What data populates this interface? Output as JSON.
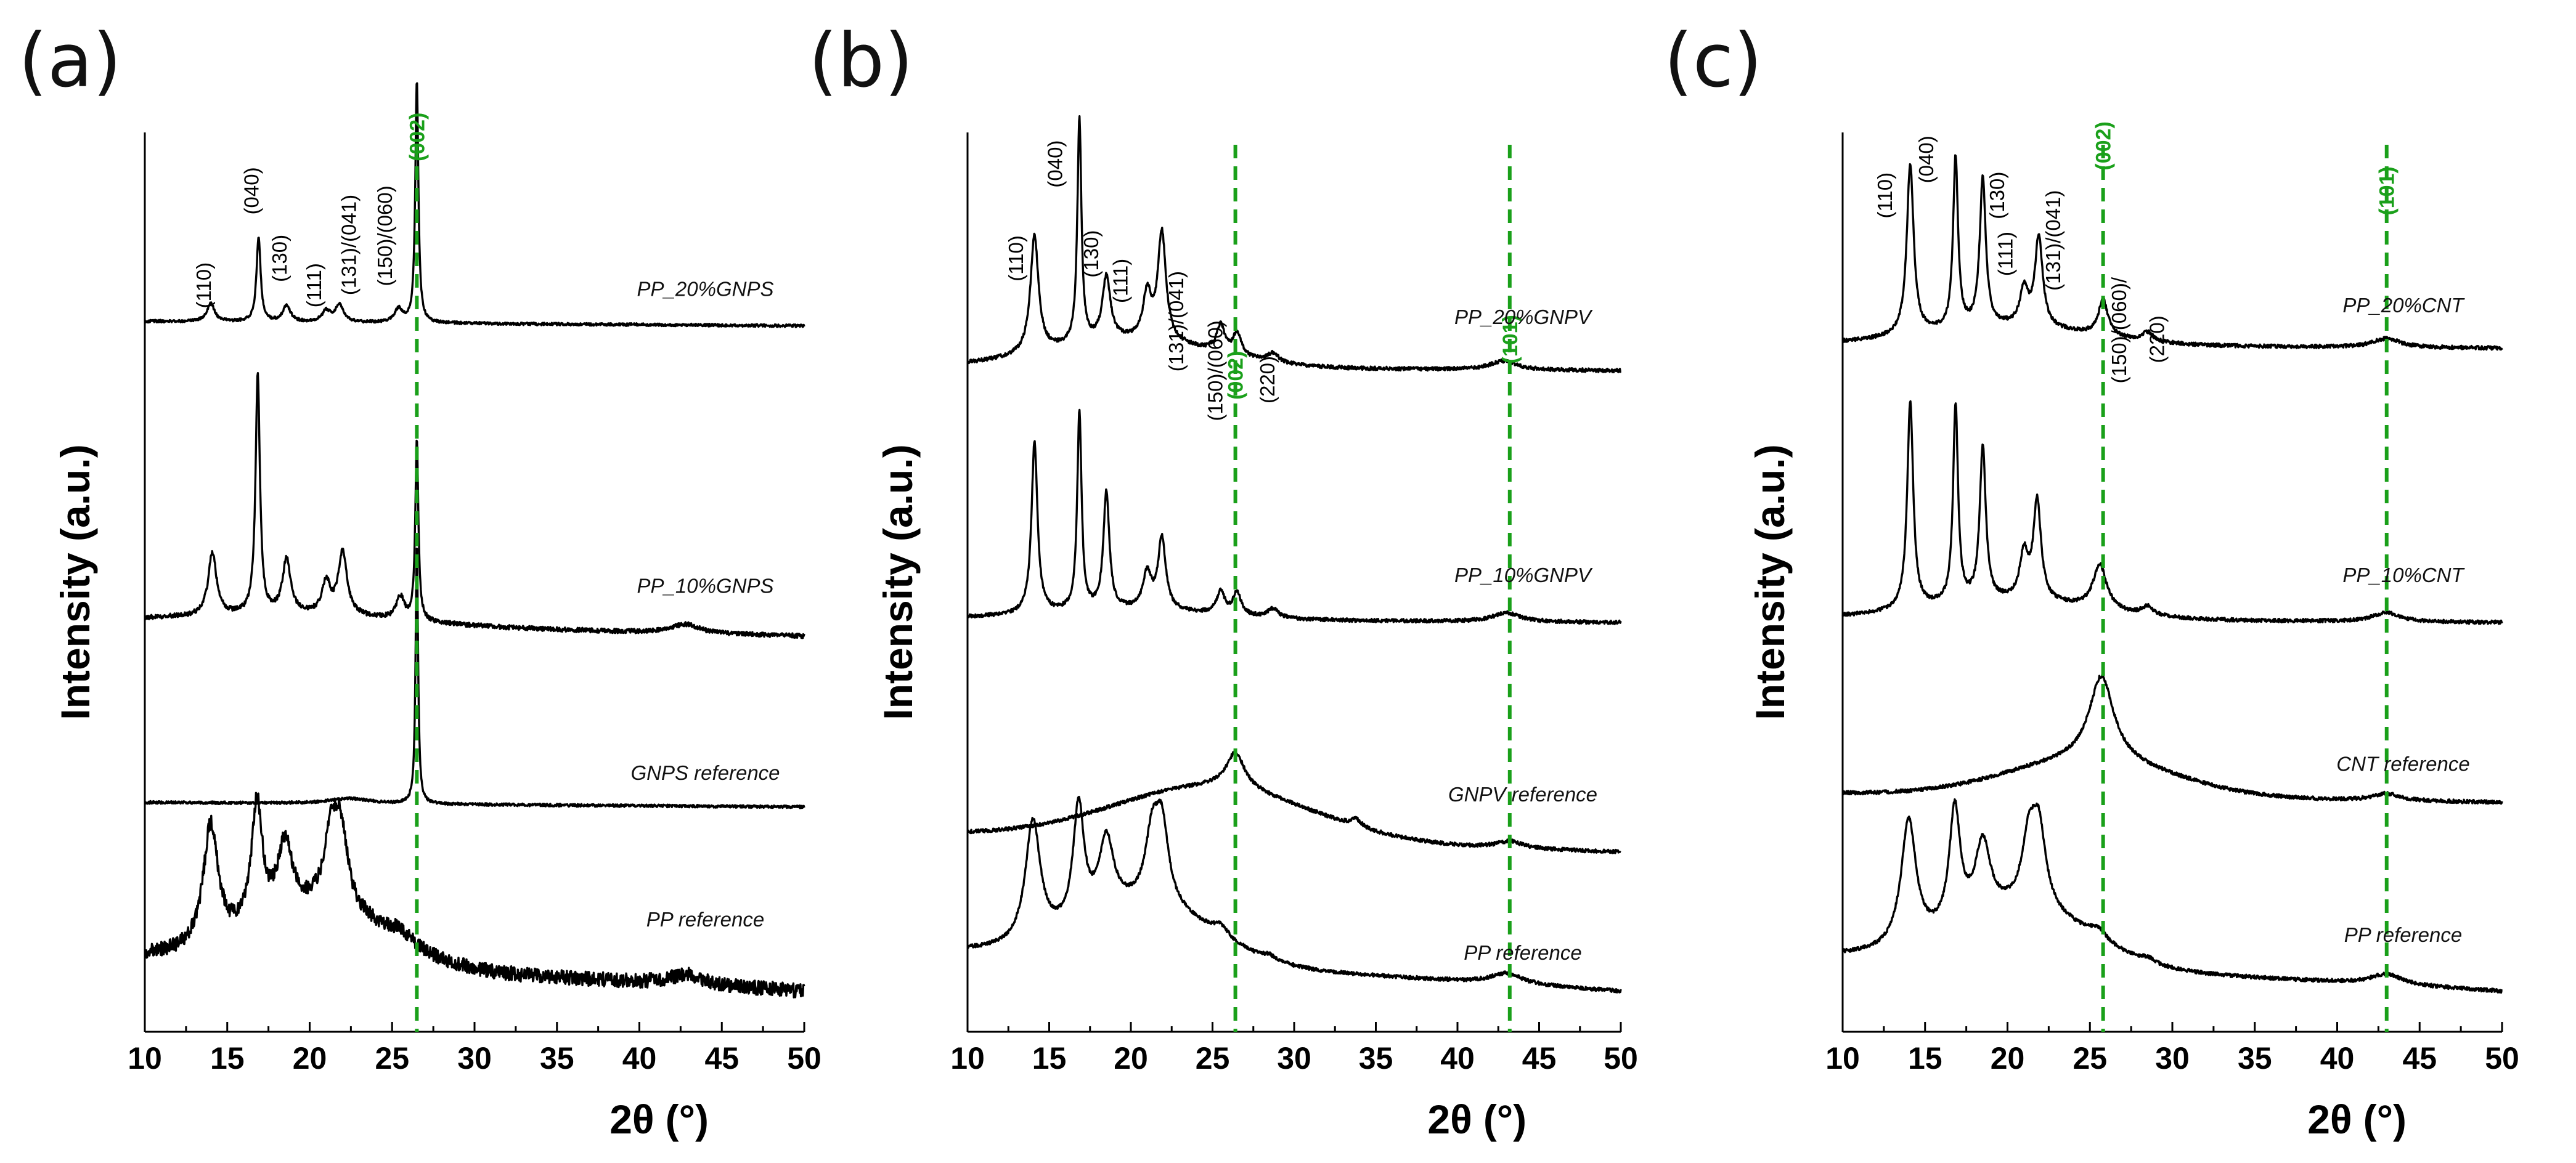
{
  "figure": {
    "x_axis_label_symbol": "2θ",
    "x_axis_label_unit": "(°)",
    "y_axis_label": "Intensity (a.u.)"
  },
  "chart_data": [
    {
      "type": "line",
      "panel": "(a)",
      "xlabel": "2θ (°)",
      "ylabel": "Intensity (a.u.)",
      "xlim": [
        10,
        50
      ],
      "xticks": [
        10,
        15,
        20,
        25,
        30,
        35,
        40,
        45,
        50
      ],
      "xtick_labels": [
        "10",
        "15",
        "20",
        "25",
        "30",
        "35",
        "40",
        "45",
        "50"
      ],
      "series": [
        {
          "name": "PP_20%GNPS",
          "baseline": 0.79,
          "tail": 0.785,
          "peaks": [
            [
              14.0,
              0.02,
              0.28
            ],
            [
              16.9,
              0.095,
              0.15
            ],
            [
              18.6,
              0.018,
              0.28
            ],
            [
              21.0,
              0.012,
              0.3
            ],
            [
              21.8,
              0.02,
              0.3
            ],
            [
              25.4,
              0.015,
              0.3
            ],
            [
              26.5,
              0.27,
              0.11
            ]
          ],
          "hump": [
            [
              23.0,
              0.0,
              5.0
            ]
          ],
          "noise": 0.0015
        },
        {
          "name": "PP_10%GNPS",
          "baseline": 0.458,
          "tail": 0.44,
          "peaks": [
            [
              14.1,
              0.07,
              0.3
            ],
            [
              16.85,
              0.265,
              0.16
            ],
            [
              18.6,
              0.06,
              0.3
            ],
            [
              21.0,
              0.035,
              0.3
            ],
            [
              22.0,
              0.07,
              0.32
            ],
            [
              25.5,
              0.025,
              0.3
            ],
            [
              26.5,
              0.2,
              0.11
            ],
            [
              42.8,
              0.01,
              1.0
            ]
          ],
          "hump": [
            [
              20.0,
              0.01,
              6.0
            ]
          ],
          "noise": 0.0025
        },
        {
          "name": "GNPS reference",
          "baseline": 0.255,
          "tail": 0.25,
          "peaks": [
            [
              22.4,
              0.006,
              1.5
            ],
            [
              26.5,
              0.29,
              0.09
            ]
          ],
          "hump": [],
          "noise": 0.0015
        },
        {
          "name": "PP reference",
          "baseline": 0.085,
          "tail": 0.045,
          "peaks": [
            [
              14.0,
              0.135,
              0.55
            ],
            [
              16.8,
              0.135,
              0.4
            ],
            [
              18.5,
              0.08,
              0.55
            ],
            [
              21.3,
              0.075,
              0.5
            ],
            [
              21.9,
              0.08,
              0.5
            ],
            [
              25.5,
              0.012,
              0.6
            ],
            [
              42.9,
              0.012,
              1.2
            ]
          ],
          "hump": [
            [
              21.0,
              0.06,
              4.0
            ]
          ],
          "noise": 0.008
        }
      ],
      "peak_labels": [
        {
          "text": "(110)",
          "x": 14.0,
          "y": 0.83
        },
        {
          "text": "(040)",
          "x": 16.9,
          "y": 0.935
        },
        {
          "text": "(130)",
          "x": 18.6,
          "y": 0.86
        },
        {
          "text": "(111)",
          "x": 20.7,
          "y": 0.83
        },
        {
          "text": "(131)/(041)",
          "x": 22.8,
          "y": 0.875
        },
        {
          "text": "(150)/(060)",
          "x": 25.0,
          "y": 0.885
        }
      ],
      "reference_lines": [
        {
          "x": 26.5,
          "label": "(002)",
          "label_y": 0.995
        }
      ],
      "trace_labels": [
        {
          "series": "PP_20%GNPS",
          "x": 44.0,
          "y": 0.818
        },
        {
          "series": "PP_10%GNPS",
          "x": 44.0,
          "y": 0.488
        },
        {
          "series": "GNPS reference",
          "x": 44.0,
          "y": 0.28
        },
        {
          "series": "PP reference",
          "x": 44.0,
          "y": 0.117
        }
      ]
    },
    {
      "type": "line",
      "panel": "(b)",
      "xlabel": "2θ (°)",
      "ylabel": "Intensity (a.u.)",
      "xlim": [
        10,
        50
      ],
      "xticks": [
        10,
        15,
        20,
        25,
        30,
        35,
        40,
        45,
        50
      ],
      "xtick_labels": [
        "10",
        "15",
        "20",
        "25",
        "30",
        "35",
        "40",
        "45",
        "50"
      ],
      "series": [
        {
          "name": "PP_20%GNPV",
          "baseline": 0.74,
          "tail": 0.735,
          "peaks": [
            [
              14.1,
              0.13,
              0.3
            ],
            [
              16.85,
              0.25,
              0.15
            ],
            [
              18.5,
              0.07,
              0.3
            ],
            [
              21.0,
              0.05,
              0.3
            ],
            [
              21.9,
              0.12,
              0.3
            ],
            [
              25.5,
              0.03,
              0.3
            ],
            [
              26.5,
              0.025,
              0.3
            ],
            [
              28.7,
              0.01,
              0.4
            ],
            [
              42.8,
              0.01,
              1.0
            ]
          ],
          "hump": [
            [
              20.0,
              0.03,
              5.0
            ]
          ],
          "noise": 0.002
        },
        {
          "name": "PP_10%GNPV",
          "baseline": 0.46,
          "tail": 0.455,
          "peaks": [
            [
              14.1,
              0.19,
              0.22
            ],
            [
              16.85,
              0.22,
              0.16
            ],
            [
              18.5,
              0.13,
              0.22
            ],
            [
              21.0,
              0.04,
              0.3
            ],
            [
              21.9,
              0.08,
              0.28
            ],
            [
              25.5,
              0.025,
              0.3
            ],
            [
              26.5,
              0.025,
              0.3
            ],
            [
              28.7,
              0.01,
              0.4
            ],
            [
              43.0,
              0.01,
              1.0
            ]
          ],
          "hump": [
            [
              20.0,
              0.01,
              5.0
            ]
          ],
          "noise": 0.002
        },
        {
          "name": "GNPV reference",
          "baseline": 0.22,
          "tail": 0.2,
          "peaks": [
            [
              26.4,
              0.04,
              0.7
            ],
            [
              33.8,
              0.008,
              0.4
            ],
            [
              43.2,
              0.008,
              1.0
            ]
          ],
          "hump": [
            [
              25.0,
              0.06,
              6.0
            ]
          ],
          "noise": 0.002
        },
        {
          "name": "PP reference",
          "baseline": 0.09,
          "tail": 0.045,
          "peaks": [
            [
              14.0,
              0.135,
              0.55
            ],
            [
              16.8,
              0.13,
              0.4
            ],
            [
              18.5,
              0.08,
              0.55
            ],
            [
              21.3,
              0.07,
              0.5
            ],
            [
              21.9,
              0.085,
              0.5
            ],
            [
              25.5,
              0.012,
              0.6
            ],
            [
              28.5,
              0.005,
              0.5
            ],
            [
              43.0,
              0.012,
              1.2
            ]
          ],
          "hump": [
            [
              21.0,
              0.06,
              4.0
            ]
          ],
          "noise": 0.002
        }
      ],
      "peak_labels": [
        {
          "text": "(110)",
          "x": 13.4,
          "y": 0.86
        },
        {
          "text": "(040)",
          "x": 15.8,
          "y": 0.965
        },
        {
          "text": "(130)",
          "x": 18.0,
          "y": 0.865
        },
        {
          "text": "(111)",
          "x": 19.8,
          "y": 0.835
        },
        {
          "text": "(131)/(041)",
          "x": 23.2,
          "y": 0.79
        },
        {
          "text": "(150)/(060)",
          "x": 25.6,
          "y": 0.735
        },
        {
          "text": "(220)",
          "x": 28.8,
          "y": 0.725
        }
      ],
      "reference_lines": [
        {
          "x": 26.4,
          "label": "(002)",
          "label_y": 0.73
        },
        {
          "x": 43.2,
          "label": "(101)",
          "label_y": 0.77
        }
      ],
      "trace_labels": [
        {
          "series": "PP_20%GNPV",
          "x": 44.0,
          "y": 0.787
        },
        {
          "series": "PP_10%GNPV",
          "x": 44.0,
          "y": 0.5
        },
        {
          "series": "GNPV reference",
          "x": 44.0,
          "y": 0.256
        },
        {
          "series": "PP reference",
          "x": 44.0,
          "y": 0.08
        }
      ]
    },
    {
      "type": "line",
      "panel": "(c)",
      "xlabel": "2θ (°)",
      "ylabel": "Intensity (a.u.)",
      "xlim": [
        10,
        50
      ],
      "xticks": [
        10,
        15,
        20,
        25,
        30,
        35,
        40,
        45,
        50
      ],
      "xtick_labels": [
        "10",
        "15",
        "20",
        "25",
        "30",
        "35",
        "40",
        "45",
        "50"
      ],
      "series": [
        {
          "name": "PP_20%CNT",
          "baseline": 0.765,
          "tail": 0.76,
          "peaks": [
            [
              14.1,
              0.19,
              0.25
            ],
            [
              16.85,
              0.19,
              0.18
            ],
            [
              18.5,
              0.165,
              0.22
            ],
            [
              21.0,
              0.04,
              0.3
            ],
            [
              21.9,
              0.1,
              0.28
            ],
            [
              25.8,
              0.04,
              0.35
            ],
            [
              28.5,
              0.01,
              0.4
            ],
            [
              43.0,
              0.01,
              1.0
            ]
          ],
          "hump": [
            [
              20.0,
              0.02,
              5.0
            ]
          ],
          "noise": 0.002
        },
        {
          "name": "PP_10%CNT",
          "baseline": 0.46,
          "tail": 0.455,
          "peaks": [
            [
              14.1,
              0.23,
              0.22
            ],
            [
              16.85,
              0.22,
              0.18
            ],
            [
              18.5,
              0.17,
              0.22
            ],
            [
              21.0,
              0.05,
              0.3
            ],
            [
              21.8,
              0.11,
              0.28
            ],
            [
              25.6,
              0.05,
              0.5
            ],
            [
              28.5,
              0.01,
              0.4
            ],
            [
              43.0,
              0.01,
              1.0
            ]
          ],
          "hump": [
            [
              20.0,
              0.02,
              5.0
            ]
          ],
          "noise": 0.002
        },
        {
          "name": "CNT reference",
          "baseline": 0.265,
          "tail": 0.255,
          "peaks": [
            [
              25.7,
              0.095,
              0.9
            ],
            [
              43.0,
              0.008,
              1.0
            ]
          ],
          "hump": [
            [
              25.0,
              0.04,
              5.0
            ]
          ],
          "noise": 0.002
        },
        {
          "name": "PP reference",
          "baseline": 0.085,
          "tail": 0.045,
          "peaks": [
            [
              14.0,
              0.14,
              0.55
            ],
            [
              16.8,
              0.13,
              0.4
            ],
            [
              18.5,
              0.08,
              0.55
            ],
            [
              21.3,
              0.07,
              0.5
            ],
            [
              21.9,
              0.085,
              0.5
            ],
            [
              25.5,
              0.012,
              0.6
            ],
            [
              28.5,
              0.005,
              0.5
            ],
            [
              43.0,
              0.012,
              1.2
            ]
          ],
          "hump": [
            [
              21.0,
              0.06,
              4.0
            ]
          ],
          "noise": 0.002
        }
      ],
      "peak_labels": [
        {
          "text": "(110)",
          "x": 13.0,
          "y": 0.93
        },
        {
          "text": "(040)",
          "x": 15.5,
          "y": 0.97
        },
        {
          "text": "(130)",
          "x": 19.8,
          "y": 0.93
        },
        {
          "text": "(111)",
          "x": 20.3,
          "y": 0.865
        },
        {
          "text": "(131)/(041)",
          "x": 23.2,
          "y": 0.88
        },
        {
          "text": "(150)/(060)/",
          "x": 27.2,
          "y": 0.78
        },
        {
          "text": "(220)",
          "x": 29.5,
          "y": 0.77
        }
      ],
      "reference_lines": [
        {
          "x": 25.8,
          "label": "(002)",
          "label_y": 0.985
        },
        {
          "x": 43.0,
          "label": "(101)",
          "label_y": 0.935
        }
      ],
      "trace_labels": [
        {
          "series": "PP_20%CNT",
          "x": 44.0,
          "y": 0.8
        },
        {
          "series": "PP_10%CNT",
          "x": 44.0,
          "y": 0.5
        },
        {
          "series": "CNT reference",
          "x": 44.0,
          "y": 0.29
        },
        {
          "series": "PP reference",
          "x": 44.0,
          "y": 0.1
        }
      ]
    }
  ]
}
